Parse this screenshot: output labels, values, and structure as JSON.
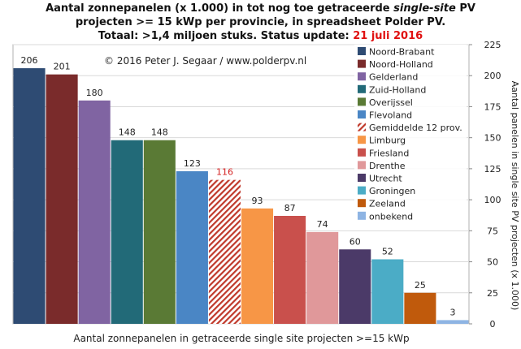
{
  "title": {
    "line1_a": "Aantal zonnepanelen (x 1.000) in tot nog toe getraceerde ",
    "line1_italic": "single-site",
    "line1_b": " PV",
    "line2": "projecten >= 15 kWp per provincie, in spreadsheet Polder PV.",
    "line3_a": "Totaal: >1,4 miljoen stuks. Status update: ",
    "line3_date": "21 juli 2016"
  },
  "copyright": "© 2016 Peter J. Segaar / www.polderpv.nl",
  "colors": {
    "average_label": "#d42020",
    "date": "#e01010",
    "plot_bg": "#ffffff"
  },
  "chart_data": {
    "type": "bar",
    "title": "Aantal zonnepanelen (x 1.000) in tot nog toe getraceerde single-site PV projecten >= 15 kWp per provincie, in spreadsheet Polder PV.",
    "categories": [
      "Noord-Brabant",
      "Noord-Holland",
      "Gelderland",
      "Zuid-Holland",
      "Overijssel",
      "Flevoland",
      "Gemiddelde 12 prov.",
      "Limburg",
      "Friesland",
      "Drenthe",
      "Utrecht",
      "Groningen",
      "Zeeland",
      "onbekend"
    ],
    "values": [
      206,
      201,
      180,
      148,
      148,
      123,
      116,
      93,
      87,
      74,
      60,
      52,
      25,
      3
    ],
    "value_labels": [
      "206",
      "201",
      "180",
      "148",
      "148",
      "123",
      "116",
      "93",
      "87",
      "74",
      "60",
      "52",
      "25",
      "3"
    ],
    "colors": [
      "#2e4b73",
      "#7a2b2b",
      "#8064a2",
      "#226a78",
      "#5a7a35",
      "#4a86c5",
      "#c0392b",
      "#f79646",
      "#c9504c",
      "#e0989a",
      "#4b3a68",
      "#4bacc6",
      "#c05a0c",
      "#8eb4e3"
    ],
    "hatched": [
      false,
      false,
      false,
      false,
      false,
      false,
      true,
      false,
      false,
      false,
      false,
      false,
      false,
      false
    ],
    "xlabel": "Aantal zonnepanelen in getraceerde single site projecten >=15 kWp",
    "ylabel": "Aantal panelen in single site PV projecten (x 1.000)",
    "ylim": [
      0,
      225
    ],
    "yticks": [
      0,
      25,
      50,
      75,
      100,
      125,
      150,
      175,
      200,
      225
    ],
    "grid": true,
    "legend_position": "top-right"
  }
}
